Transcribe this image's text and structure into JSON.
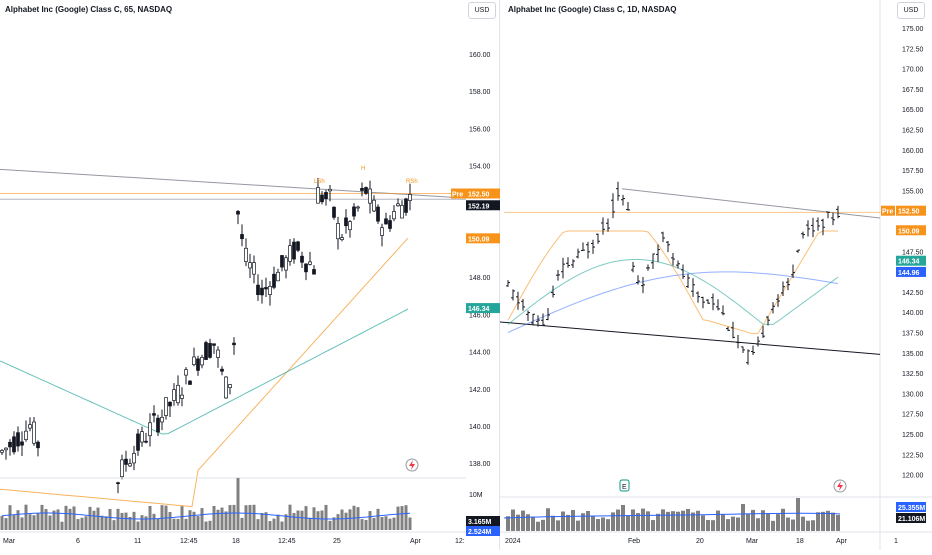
{
  "left_chart": {
    "title": "Alphabet Inc (Google) Class C, 65, NASDAQ",
    "currency": "USD",
    "price_ticks": [
      "160.00",
      "158.00",
      "156.00",
      "154.00",
      "152.00",
      "150.00",
      "148.00",
      "146.00",
      "144.00",
      "142.00",
      "140.00",
      "138.00"
    ],
    "volume_tick": "10M",
    "time_ticks": [
      "Mar",
      "6",
      "11",
      "12:45",
      "18",
      "12:45",
      "25",
      "Apr",
      "12:"
    ],
    "pattern_labels": [
      "LSh",
      "H",
      "RSh"
    ],
    "badges": {
      "pre_label": "Pre",
      "pre_value": "152.50",
      "last_value": "152.19",
      "ema_fast": "150.09",
      "ema_slow": "146.34",
      "volume": "3.165M",
      "volume_ma": "2.524M"
    },
    "colors": {
      "pre": "#f7931a",
      "last": "#131722",
      "ema_fast": "#f7931a",
      "ema_slow": "#26a69a",
      "volume": "#808080",
      "volume_ma": "#2962ff"
    }
  },
  "right_chart": {
    "title": "Alphabet Inc (Google) Class C, 1D, NASDAQ",
    "currency": "USD",
    "price_ticks": [
      "175.00",
      "172.50",
      "170.00",
      "167.50",
      "165.00",
      "162.50",
      "160.00",
      "157.50",
      "155.00",
      "152.50",
      "150.00",
      "147.50",
      "145.00",
      "142.50",
      "140.00",
      "137.50",
      "135.00",
      "132.50",
      "130.00",
      "127.50",
      "125.00",
      "122.50",
      "120.00"
    ],
    "time_ticks": [
      "2024",
      "Feb",
      "20",
      "Mar",
      "18",
      "Apr",
      "1"
    ],
    "badges": {
      "pre_label": "Pre",
      "pre_value": "152.50",
      "ema_fast": "150.09",
      "ema_slow": "146.34",
      "sma": "144.96",
      "volume": "25.355M",
      "volume_ma": "21.106M"
    },
    "earnings_marker": "E",
    "colors": {
      "pre": "#f7931a",
      "ema_fast": "#f7931a",
      "ema_slow": "#26a69a",
      "sma": "#2962ff",
      "volume": "#808080",
      "volume_ma": "#2962ff"
    }
  },
  "icons": [
    "lightning-icon",
    "lightning-icon"
  ]
}
